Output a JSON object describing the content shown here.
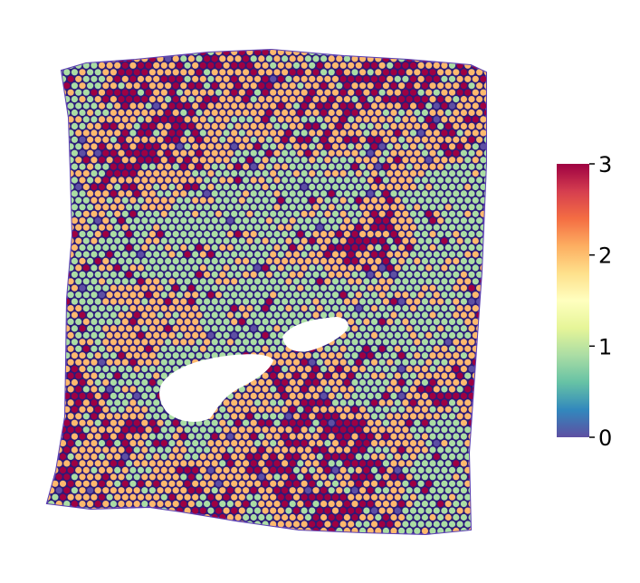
{
  "chart_data": {
    "type": "scatter",
    "title": "",
    "xlabel": "",
    "ylabel": "",
    "grid": false,
    "axes_visible": false,
    "colormap": "Spectral_r",
    "color_range": [
      0,
      3
    ],
    "colorbar": {
      "position": "right",
      "ticks": [
        0,
        1,
        2,
        3
      ],
      "tick_labels": [
        "0",
        "1",
        "2",
        "3"
      ]
    },
    "stops": [
      "#5e4fa2",
      "#3288bd",
      "#66c2a5",
      "#abdda4",
      "#e6f598",
      "#ffffbf",
      "#fee08b",
      "#fdae61",
      "#f46d43",
      "#d53e4f",
      "#9e0142"
    ],
    "level_colors": [
      "#5e4fa2",
      "#abdda4",
      "#fdb96e",
      "#9e0142"
    ],
    "dominant_level_share": {
      "0": 0.02,
      "1": 0.44,
      "2": 0.42,
      "3": 0.12
    },
    "tissue_outline_color": "#2a1a7a",
    "background": "#ffffff"
  }
}
